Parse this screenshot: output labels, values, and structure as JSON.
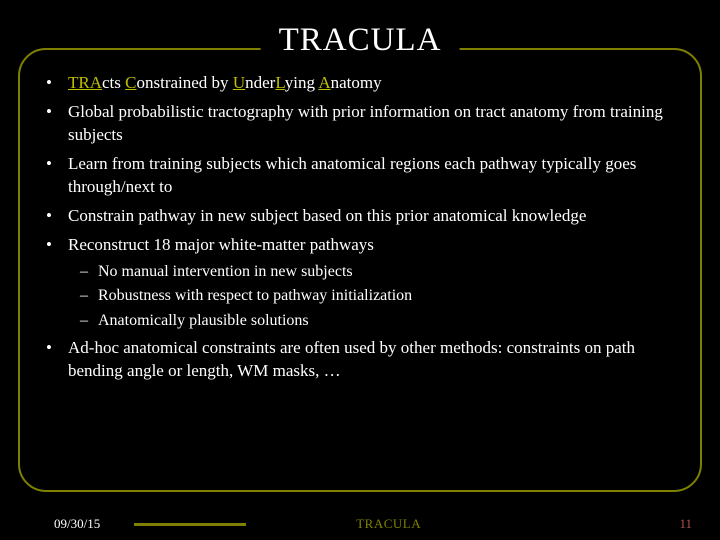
{
  "title": "TRACULA",
  "colors": {
    "background": "#000000",
    "accent": "#808000",
    "highlight": "#bfbf00",
    "text": "#ffffff",
    "page": "#b05050"
  },
  "bullets": {
    "b1_pre": "",
    "b1_TRA": "TRA",
    "b1_cts": "cts ",
    "b1_C": "C",
    "b1_onstrained": "onstrained by ",
    "b1_U": "U",
    "b1_nder": "nder",
    "b1_L": "L",
    "b1_ying": "ying ",
    "b1_A": "A",
    "b1_natomy": "natomy",
    "b2": "Global probabilistic tractography with prior information on tract anatomy from training subjects",
    "b3": "Learn from training subjects which anatomical regions each pathway typically goes through/next to",
    "b4": "Constrain pathway in new subject based on this prior anatomical knowledge",
    "b5": "Reconstruct 18 major white-matter pathways",
    "b5_sub1": "No manual intervention in new subjects",
    "b5_sub2": "Robustness with respect to pathway initialization",
    "b5_sub3": "Anatomically plausible solutions",
    "b6": "Ad-hoc anatomical constraints are often used by other methods: constraints on path bending angle or length, WM masks, …"
  },
  "footer": {
    "date": "09/30/15",
    "title": "TRACULA",
    "page": "11"
  }
}
